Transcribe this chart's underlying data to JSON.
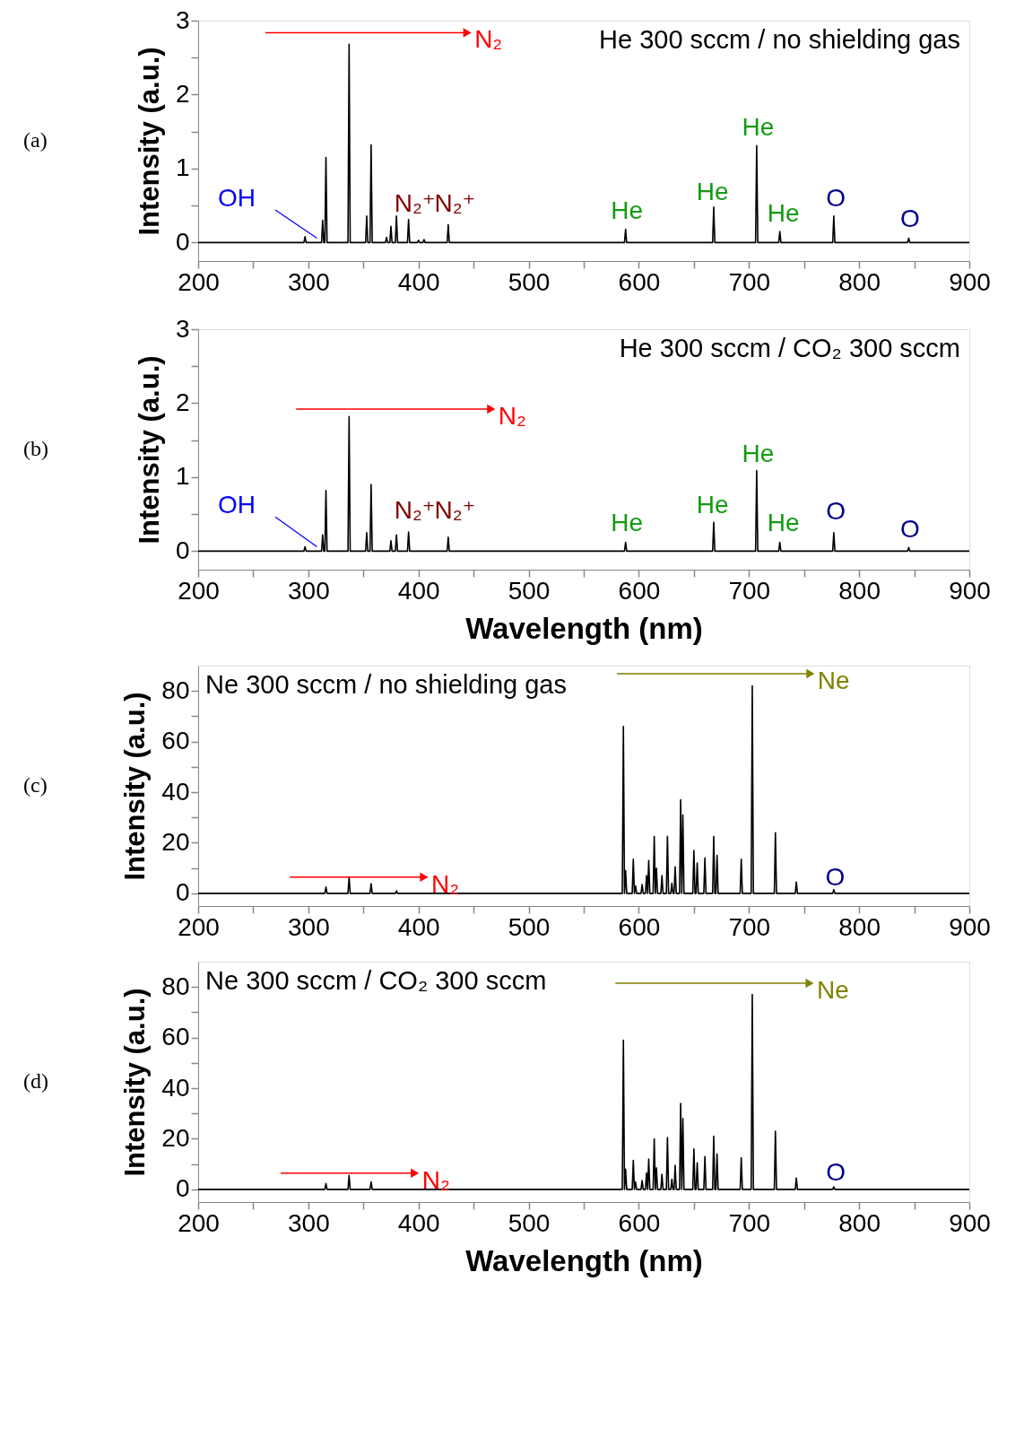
{
  "chart_data": [
    {
      "type": "line",
      "title": "He 300 sccm / no shielding gas",
      "ylabel": "Intensity (a.u.)",
      "xlim": [
        200,
        900
      ],
      "ylim": [
        -0.25,
        3
      ],
      "xticks": [
        200,
        {
          "value": 250,
          "label": null
        },
        300,
        {
          "value": 350,
          "label": null
        },
        400,
        {
          "value": 450,
          "label": null
        },
        500,
        {
          "value": 550,
          "label": null
        },
        600,
        {
          "value": 650,
          "label": null
        },
        700,
        {
          "value": 750,
          "label": null
        },
        800,
        {
          "value": 850,
          "label": null
        },
        900
      ],
      "yticks": [
        0,
        {
          "value": 0.5,
          "label": null
        },
        1,
        {
          "value": 1.5,
          "label": null
        },
        2,
        {
          "value": 2.5,
          "label": null
        },
        3
      ],
      "series": [
        {
          "color": "#000000",
          "x": [
            200,
            296,
            297,
            298,
            312,
            313,
            314,
            315,
            316,
            317,
            336,
            337,
            338,
            352,
            353,
            354,
            356,
            357,
            358,
            370,
            371,
            372,
            374,
            375,
            376,
            379,
            380,
            381,
            390,
            391,
            392,
            399,
            400,
            401,
            404,
            405,
            406,
            426,
            427,
            428,
            587,
            588,
            589,
            667,
            668,
            669,
            706,
            707,
            708,
            727,
            728,
            729,
            776,
            777,
            778,
            844,
            845,
            846,
            900
          ],
          "values": [
            0,
            0,
            0.08,
            0,
            0,
            0.3,
            0,
            0,
            1.15,
            0,
            0,
            2.68,
            0,
            0,
            0.36,
            0,
            0,
            1.32,
            0,
            0,
            0.07,
            0,
            0,
            0.22,
            0,
            0,
            0.36,
            0,
            0,
            0.31,
            0,
            0,
            0.03,
            0,
            0,
            0.04,
            0,
            0,
            0.24,
            0,
            0,
            0.18,
            0,
            0,
            0.48,
            0,
            0,
            1.31,
            0,
            0,
            0.15,
            0,
            0,
            0.36,
            0,
            0,
            0.06,
            0,
            0
          ]
        }
      ],
      "annotations": [
        "(a)",
        "N₂",
        "OH",
        "N₂⁺",
        "N₂⁺",
        "He",
        "He",
        "He",
        "He",
        "O",
        "O"
      ]
    },
    {
      "type": "line",
      "title": "He 300 sccm / CO₂ 300 sccm",
      "xlabel": "Wavelength (nm)",
      "ylabel": "Intensity (a.u.)",
      "xlim": [
        200,
        900
      ],
      "ylim": [
        -0.25,
        3
      ],
      "xticks": [
        200,
        {
          "value": 250,
          "label": null
        },
        300,
        {
          "value": 350,
          "label": null
        },
        400,
        {
          "value": 450,
          "label": null
        },
        500,
        {
          "value": 550,
          "label": null
        },
        600,
        {
          "value": 650,
          "label": null
        },
        700,
        {
          "value": 750,
          "label": null
        },
        800,
        {
          "value": 850,
          "label": null
        },
        900
      ],
      "yticks": [
        0,
        {
          "value": 0.5,
          "label": null
        },
        1,
        {
          "value": 1.5,
          "label": null
        },
        2,
        {
          "value": 2.5,
          "label": null
        },
        3
      ],
      "series": [
        {
          "color": "#000000",
          "x": [
            200,
            296,
            297,
            298,
            312,
            313,
            314,
            315,
            316,
            317,
            336,
            337,
            338,
            352,
            353,
            354,
            356,
            357,
            358,
            374,
            375,
            376,
            379,
            380,
            381,
            390,
            391,
            392,
            426,
            427,
            428,
            587,
            588,
            589,
            667,
            668,
            669,
            706,
            707,
            708,
            727,
            728,
            729,
            776,
            777,
            778,
            844,
            845,
            846,
            900
          ],
          "values": [
            0,
            0,
            0.06,
            0,
            0,
            0.22,
            0,
            0,
            0.82,
            0,
            0,
            1.82,
            0,
            0,
            0.25,
            0,
            0,
            0.9,
            0,
            0,
            0.14,
            0,
            0,
            0.22,
            0,
            0,
            0.26,
            0,
            0,
            0.19,
            0,
            0,
            0.12,
            0,
            0,
            0.39,
            0,
            0,
            1.09,
            0,
            0,
            0.12,
            0,
            0,
            0.25,
            0,
            0,
            0.05,
            0,
            0
          ]
        }
      ],
      "annotations": [
        "(b)",
        "N₂",
        "OH",
        "N₂⁺",
        "N₂⁺",
        "He",
        "He",
        "He",
        "He",
        "O",
        "O"
      ]
    },
    {
      "type": "line",
      "title": "Ne 300 sccm / no shielding gas",
      "ylabel": "Intensity (a.u.)",
      "xlim": [
        200,
        900
      ],
      "ylim": [
        -5,
        90
      ],
      "xticks": [
        200,
        {
          "value": 250,
          "label": null
        },
        300,
        {
          "value": 350,
          "label": null
        },
        400,
        {
          "value": 450,
          "label": null
        },
        500,
        {
          "value": 550,
          "label": null
        },
        600,
        {
          "value": 650,
          "label": null
        },
        700,
        {
          "value": 750,
          "label": null
        },
        800,
        {
          "value": 850,
          "label": null
        },
        900
      ],
      "yticks": [
        0,
        {
          "value": 10,
          "label": null
        },
        20,
        {
          "value": 30,
          "label": null
        },
        40,
        {
          "value": 50,
          "label": null
        },
        60,
        {
          "value": 70,
          "label": null
        },
        80
      ],
      "series": [
        {
          "color": "#000000",
          "x": [
            200,
            315,
            316,
            317,
            336,
            337,
            338,
            356,
            357,
            358,
            379,
            380,
            381,
            585,
            586,
            587,
            588,
            589,
            594,
            595,
            596,
            597,
            598,
            602,
            603,
            604,
            606,
            607,
            608,
            609,
            610,
            613,
            614,
            615,
            616,
            617,
            620,
            621,
            622,
            625,
            626,
            627,
            629,
            630,
            631,
            632,
            633,
            634,
            637,
            638,
            639,
            640,
            641,
            649,
            650,
            651,
            652,
            653,
            654,
            659,
            660,
            661,
            667,
            668,
            669,
            670,
            671,
            672,
            692,
            693,
            694,
            702,
            703,
            704,
            723,
            724,
            725,
            742,
            743,
            744,
            776,
            777,
            778,
            900
          ],
          "values": [
            0,
            0,
            2.5,
            0,
            0,
            6.5,
            0,
            0,
            3.8,
            0,
            0,
            1,
            0,
            0,
            66,
            0,
            9,
            0,
            0,
            13.5,
            0,
            3,
            0,
            0,
            3.5,
            0,
            0,
            7,
            0,
            13,
            0,
            0,
            22.5,
            0,
            10,
            0,
            0,
            7,
            0,
            0,
            22.5,
            0,
            0,
            4,
            0,
            0,
            10.5,
            0,
            0,
            37,
            0,
            31,
            0,
            0,
            17,
            0,
            0,
            12,
            0,
            0,
            14,
            0,
            0,
            22.5,
            0,
            0,
            15,
            0,
            0,
            13.5,
            0,
            0,
            82,
            0,
            0,
            24,
            0,
            0,
            4.5,
            0,
            0,
            1.5,
            0,
            0
          ]
        }
      ],
      "annotations": [
        "(c)",
        "N₂",
        "Ne",
        "O"
      ]
    },
    {
      "type": "line",
      "title": "Ne 300 sccm / CO₂ 300 sccm",
      "xlabel": "Wavelength (nm)",
      "ylabel": "Intensity (a.u.)",
      "xlim": [
        200,
        900
      ],
      "ylim": [
        -5,
        90
      ],
      "xticks": [
        200,
        {
          "value": 250,
          "label": null
        },
        300,
        {
          "value": 350,
          "label": null
        },
        400,
        {
          "value": 450,
          "label": null
        },
        500,
        {
          "value": 550,
          "label": null
        },
        600,
        {
          "value": 650,
          "label": null
        },
        700,
        {
          "value": 750,
          "label": null
        },
        800,
        {
          "value": 850,
          "label": null
        },
        900
      ],
      "yticks": [
        0,
        {
          "value": 10,
          "label": null
        },
        20,
        {
          "value": 30,
          "label": null
        },
        40,
        {
          "value": 50,
          "label": null
        },
        60,
        {
          "value": 70,
          "label": null
        },
        80
      ],
      "series": [
        {
          "color": "#000000",
          "x": [
            200,
            315,
            316,
            317,
            336,
            337,
            338,
            356,
            357,
            358,
            585,
            586,
            587,
            588,
            589,
            594,
            595,
            596,
            597,
            598,
            602,
            603,
            604,
            606,
            607,
            608,
            609,
            610,
            613,
            614,
            615,
            616,
            617,
            620,
            621,
            622,
            625,
            626,
            627,
            629,
            630,
            631,
            632,
            633,
            634,
            637,
            638,
            639,
            640,
            641,
            649,
            650,
            651,
            652,
            653,
            654,
            659,
            660,
            661,
            667,
            668,
            669,
            670,
            671,
            672,
            692,
            693,
            694,
            702,
            703,
            704,
            723,
            724,
            725,
            742,
            743,
            744,
            776,
            777,
            778,
            900
          ],
          "values": [
            0,
            0,
            2.3,
            0,
            0,
            5.5,
            0,
            0,
            3,
            0,
            0,
            59,
            0,
            8,
            0,
            0,
            11.5,
            0,
            3,
            0,
            0,
            3.5,
            0,
            0,
            6.5,
            0,
            12,
            0,
            0,
            20,
            0,
            8.5,
            0,
            0,
            6,
            0,
            0,
            20.5,
            0,
            0,
            4,
            0,
            0,
            9.5,
            0,
            0,
            34,
            0,
            28,
            0,
            0,
            16,
            0,
            0,
            10.5,
            0,
            0,
            13,
            0,
            0,
            21,
            0,
            0,
            14,
            0,
            0,
            12.5,
            0,
            0,
            77,
            0,
            0,
            23,
            0,
            0,
            4.5,
            0,
            0,
            1,
            0,
            0
          ]
        }
      ],
      "annotations": [
        "(d)",
        "N₂",
        "Ne",
        "O"
      ]
    }
  ]
}
